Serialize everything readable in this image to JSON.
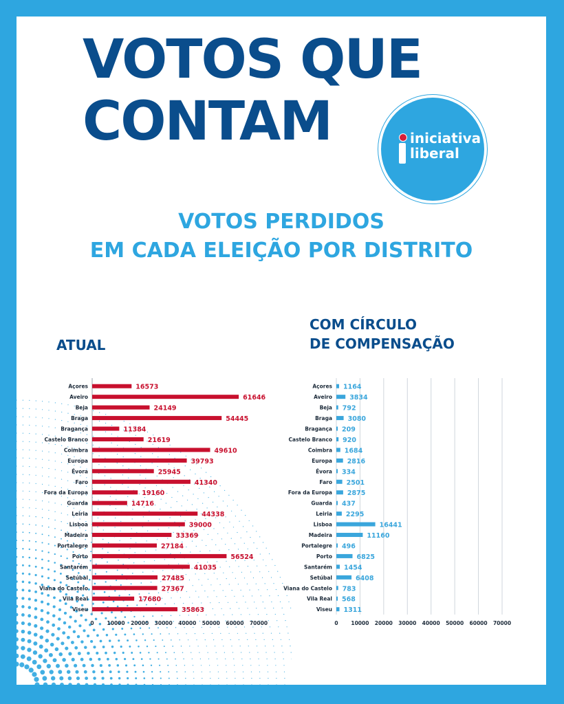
{
  "header": {
    "title_line1": "VOTOS QUE",
    "title_line2": "CONTAM",
    "subtitle_line1": "VOTOS PERDIDOS",
    "subtitle_line2": "EM CADA ELEIÇÃO POR DISTRITO"
  },
  "logo": {
    "line1": "iniciativa",
    "line2": "liberal"
  },
  "sections": {
    "left_title": "ATUAL",
    "right_title_line1": "COM CÍRCULO",
    "right_title_line2": "DE COMPENSAÇÃO"
  },
  "colors": {
    "frame_blue": "#2ea6e0",
    "title_navy": "#0a4d8c",
    "bar_red": "#c8102e",
    "bar_blue": "#3aa6dc",
    "logo_red": "#d61f3a"
  },
  "chart_data": [
    {
      "type": "bar",
      "orientation": "horizontal",
      "title": "ATUAL",
      "categories": [
        "Açores",
        "Aveiro",
        "Beja",
        "Braga",
        "Bragança",
        "Castelo Branco",
        "Coimbra",
        "Europa",
        "Évora",
        "Faro",
        "Fora da Europa",
        "Guarda",
        "Leiria",
        "Lisboa",
        "Madeira",
        "Portalegre",
        "Porto",
        "Santarém",
        "Setúbal",
        "Viana do Castelo",
        "Vila Real",
        "Viseu"
      ],
      "values": [
        16573,
        61646,
        24149,
        54445,
        11384,
        21619,
        49610,
        39793,
        25945,
        41340,
        19160,
        14716,
        44338,
        39000,
        33369,
        27184,
        56524,
        41035,
        27485,
        27367,
        17680,
        35863
      ],
      "xlim": [
        0,
        70000
      ],
      "xticks": [
        "0",
        "10000",
        "20000",
        "30000",
        "40000",
        "50000",
        "60000",
        "70000"
      ],
      "grid": false,
      "data_labels": true
    },
    {
      "type": "bar",
      "orientation": "horizontal",
      "title": "COM CÍRCULO DE COMPENSAÇÃO",
      "categories": [
        "Açores",
        "Aveiro",
        "Beja",
        "Braga",
        "Bragança",
        "Castelo Branco",
        "Coimbra",
        "Europa",
        "Évora",
        "Faro",
        "Fora da Europa",
        "Guarda",
        "Leiria",
        "Lisboa",
        "Madeira",
        "Portalegre",
        "Porto",
        "Santarém",
        "Setúbal",
        "Viana do Castelo",
        "Vila Real",
        "Viseu"
      ],
      "values": [
        1164,
        3834,
        792,
        3080,
        209,
        920,
        1684,
        2816,
        334,
        2501,
        2875,
        437,
        2295,
        16441,
        11160,
        496,
        6825,
        1454,
        6408,
        783,
        568,
        1311
      ],
      "xlim": [
        0,
        70000
      ],
      "xticks": [
        "0",
        "10000",
        "20000",
        "30000",
        "40000",
        "50000",
        "60000",
        "70000"
      ],
      "grid": true,
      "data_labels": true
    }
  ]
}
